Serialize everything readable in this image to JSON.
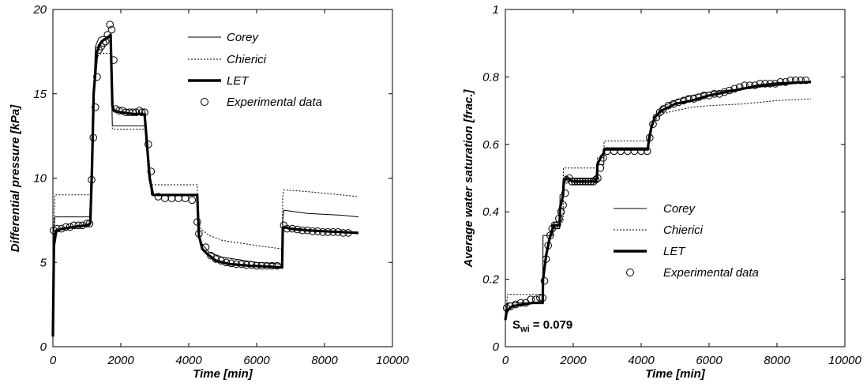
{
  "chart_data": [
    {
      "type": "line",
      "xlabel": "Time [min]",
      "ylabel": "Differential pressure [kPa]",
      "xlim": [
        0,
        10000
      ],
      "ylim": [
        0,
        20
      ],
      "xticks": [
        "0",
        "2000",
        "4000",
        "6000",
        "8000",
        "10000"
      ],
      "yticks": [
        "0",
        "5",
        "10",
        "15",
        "20"
      ],
      "grid": false,
      "legend_position": "top-right",
      "series": [
        {
          "name": "Corey",
          "style": "thin-solid",
          "x": [
            0,
            30,
            60,
            1100,
            1150,
            1250,
            1350,
            1450,
            1600,
            1700,
            1750,
            1800,
            2700,
            2750,
            2900,
            4250,
            4270,
            4350,
            4600,
            5000,
            6000,
            6750,
            6770,
            6800,
            7500,
            8500,
            9000
          ],
          "y": [
            0.8,
            7.0,
            7.7,
            7.7,
            12.0,
            17.8,
            18.3,
            18.4,
            18.4,
            18.4,
            13.1,
            13.1,
            13.1,
            13.1,
            9.0,
            9.0,
            7.2,
            6.2,
            5.6,
            5.3,
            5.0,
            4.9,
            7.5,
            8.1,
            7.9,
            7.8,
            7.7
          ]
        },
        {
          "name": "Chierici",
          "style": "dotted",
          "x": [
            0,
            30,
            60,
            1100,
            1150,
            1250,
            1350,
            1450,
            1600,
            1700,
            1750,
            1800,
            2700,
            2750,
            2900,
            4250,
            4270,
            4350,
            4600,
            5000,
            6000,
            6750,
            6770,
            6800,
            7500,
            8500,
            9000
          ],
          "y": [
            0.8,
            7.5,
            9.0,
            9.0,
            12.5,
            17.0,
            17.3,
            17.4,
            17.4,
            17.4,
            12.9,
            12.9,
            12.9,
            12.9,
            9.6,
            9.6,
            7.8,
            7.0,
            6.6,
            6.3,
            6.0,
            5.8,
            9.0,
            9.3,
            9.2,
            9.0,
            8.9
          ]
        },
        {
          "name": "LET",
          "style": "thick-solid",
          "x": [
            0,
            30,
            100,
            300,
            600,
            1000,
            1100,
            1150,
            1200,
            1300,
            1400,
            1500,
            1600,
            1700,
            1750,
            1800,
            2000,
            2400,
            2700,
            2750,
            2850,
            2950,
            3200,
            3600,
            4000,
            4250,
            4270,
            4300,
            4400,
            4550,
            4800,
            5200,
            5800,
            6400,
            6750,
            6770,
            6800,
            7000,
            7500,
            8000,
            8500,
            9000
          ],
          "y": [
            0.6,
            6.0,
            6.9,
            7.0,
            7.1,
            7.2,
            7.3,
            10.5,
            15.0,
            17.5,
            18.0,
            18.2,
            18.3,
            18.5,
            14.3,
            14.0,
            13.9,
            13.8,
            13.8,
            12.5,
            10.0,
            9.0,
            9.0,
            9.0,
            9.0,
            9.0,
            8.0,
            6.6,
            5.8,
            5.5,
            5.1,
            4.9,
            4.8,
            4.75,
            4.7,
            7.0,
            7.1,
            7.0,
            6.9,
            6.85,
            6.8,
            6.75
          ]
        }
      ],
      "experimental": {
        "name": "Experimental data",
        "x": [
          20,
          120,
          250,
          380,
          500,
          620,
          750,
          870,
          1000,
          1080,
          1140,
          1190,
          1250,
          1300,
          1350,
          1420,
          1490,
          1550,
          1610,
          1680,
          1730,
          1790,
          1850,
          1950,
          2050,
          2150,
          2250,
          2350,
          2450,
          2550,
          2620,
          2700,
          2810,
          2890,
          3100,
          3300,
          3500,
          3700,
          3900,
          4100,
          4250,
          4300,
          4500,
          4650,
          4800,
          4950,
          5100,
          5250,
          5400,
          5550,
          5700,
          5850,
          6000,
          6150,
          6300,
          6450,
          6600,
          6800,
          6900,
          7050,
          7200,
          7350,
          7500,
          7650,
          7800,
          7950,
          8100,
          8250,
          8400,
          8550,
          8700
        ],
        "y": [
          6.9,
          7.0,
          7.0,
          7.1,
          7.1,
          7.2,
          7.2,
          7.2,
          7.3,
          7.3,
          9.9,
          12.4,
          14.2,
          16.0,
          17.6,
          17.8,
          18.0,
          18.1,
          18.5,
          19.1,
          18.8,
          17.0,
          14.1,
          14.0,
          14.0,
          13.9,
          13.9,
          13.9,
          13.9,
          14.0,
          13.9,
          13.9,
          12.0,
          10.4,
          8.9,
          8.8,
          8.8,
          8.8,
          8.8,
          8.7,
          7.4,
          6.7,
          5.9,
          5.4,
          5.2,
          5.1,
          5.0,
          4.95,
          4.9,
          4.9,
          4.85,
          4.85,
          4.8,
          4.8,
          4.8,
          4.8,
          4.8,
          7.2,
          7.0,
          7.0,
          6.95,
          6.9,
          6.9,
          6.85,
          6.85,
          6.8,
          6.8,
          6.8,
          6.8,
          6.75,
          6.75
        ]
      },
      "annotation": null
    },
    {
      "type": "line",
      "xlabel": "Time [min]",
      "ylabel": "Average water saturation [frac.]",
      "xlim": [
        0,
        10000
      ],
      "ylim": [
        0,
        1
      ],
      "xticks": [
        "0",
        "2000",
        "4000",
        "6000",
        "8000",
        "10000"
      ],
      "yticks": [
        "0",
        "0.2",
        "0.4",
        "0.6",
        "0.8",
        "1"
      ],
      "grid": false,
      "legend_position": "center-right",
      "series": [
        {
          "name": "Corey",
          "style": "thin-solid",
          "x": [
            0,
            20,
            60,
            1100,
            1110,
            1400,
            1410,
            1600,
            1610,
            1700,
            1710,
            2700,
            2710,
            2900,
            2910,
            4200,
            4210,
            4300,
            4400,
            4600,
            5000,
            5500,
            6000,
            7000,
            8000,
            9000
          ],
          "y": [
            0.079,
            0.1,
            0.13,
            0.13,
            0.33,
            0.33,
            0.35,
            0.35,
            0.45,
            0.45,
            0.5,
            0.5,
            0.54,
            0.54,
            0.59,
            0.59,
            0.62,
            0.66,
            0.68,
            0.71,
            0.73,
            0.745,
            0.755,
            0.765,
            0.775,
            0.785
          ]
        },
        {
          "name": "Chierici",
          "style": "dotted",
          "x": [
            0,
            20,
            60,
            1100,
            1110,
            1400,
            1410,
            1700,
            1710,
            2700,
            2710,
            2900,
            2910,
            4200,
            4210,
            4300,
            4400,
            4600,
            5000,
            5500,
            6000,
            7000,
            8000,
            9000
          ],
          "y": [
            0.079,
            0.11,
            0.155,
            0.155,
            0.33,
            0.33,
            0.37,
            0.37,
            0.53,
            0.53,
            0.56,
            0.56,
            0.61,
            0.61,
            0.62,
            0.65,
            0.67,
            0.69,
            0.7,
            0.71,
            0.715,
            0.72,
            0.73,
            0.735
          ]
        },
        {
          "name": "LET",
          "style": "thick-solid",
          "x": [
            0,
            30,
            80,
            200,
            500,
            800,
            1100,
            1110,
            1200,
            1300,
            1390,
            1400,
            1600,
            1610,
            1700,
            1720,
            1800,
            2000,
            2300,
            2650,
            2700,
            2710,
            2800,
            2900,
            2910,
            3500,
            4000,
            4200,
            4210,
            4300,
            4400,
            4600,
            5000,
            5500,
            6000,
            6500,
            7000,
            7500,
            8000,
            8500,
            9000
          ],
          "y": [
            0.079,
            0.1,
            0.11,
            0.12,
            0.125,
            0.13,
            0.13,
            0.2,
            0.27,
            0.32,
            0.35,
            0.36,
            0.36,
            0.41,
            0.45,
            0.49,
            0.5,
            0.49,
            0.49,
            0.49,
            0.5,
            0.54,
            0.56,
            0.575,
            0.585,
            0.585,
            0.585,
            0.585,
            0.6,
            0.65,
            0.68,
            0.7,
            0.72,
            0.73,
            0.745,
            0.755,
            0.765,
            0.775,
            0.78,
            0.783,
            0.785
          ]
        }
      ],
      "experimental": {
        "name": "Experimental data",
        "x": [
          40,
          150,
          300,
          450,
          600,
          750,
          900,
          1020,
          1100,
          1150,
          1200,
          1260,
          1320,
          1380,
          1450,
          1520,
          1580,
          1640,
          1700,
          1760,
          1800,
          1880,
          1960,
          2040,
          2120,
          2200,
          2280,
          2360,
          2440,
          2520,
          2600,
          2660,
          2720,
          2800,
          2880,
          3000,
          3200,
          3400,
          3600,
          3800,
          4000,
          4180,
          4250,
          4350,
          4450,
          4550,
          4650,
          4800,
          4950,
          5100,
          5250,
          5400,
          5550,
          5700,
          5850,
          6000,
          6150,
          6300,
          6450,
          6600,
          6750,
          6900,
          7050,
          7200,
          7350,
          7500,
          7650,
          7800,
          7950,
          8100,
          8250,
          8400,
          8550,
          8700,
          8850
        ],
        "y": [
          0.115,
          0.12,
          0.125,
          0.13,
          0.13,
          0.14,
          0.14,
          0.145,
          0.145,
          0.195,
          0.26,
          0.3,
          0.33,
          0.35,
          0.36,
          0.36,
          0.38,
          0.4,
          0.42,
          0.455,
          0.495,
          0.5,
          0.49,
          0.49,
          0.49,
          0.49,
          0.49,
          0.49,
          0.49,
          0.49,
          0.49,
          0.495,
          0.5,
          0.53,
          0.56,
          0.58,
          0.58,
          0.58,
          0.58,
          0.58,
          0.58,
          0.58,
          0.62,
          0.66,
          0.68,
          0.695,
          0.705,
          0.715,
          0.72,
          0.725,
          0.73,
          0.735,
          0.735,
          0.74,
          0.745,
          0.745,
          0.75,
          0.75,
          0.755,
          0.76,
          0.765,
          0.77,
          0.775,
          0.775,
          0.775,
          0.78,
          0.78,
          0.78,
          0.78,
          0.785,
          0.785,
          0.79,
          0.79,
          0.79,
          0.79
        ]
      },
      "annotation": {
        "main": "S",
        "sub": "wi",
        "rest": " = 0.079"
      }
    }
  ]
}
